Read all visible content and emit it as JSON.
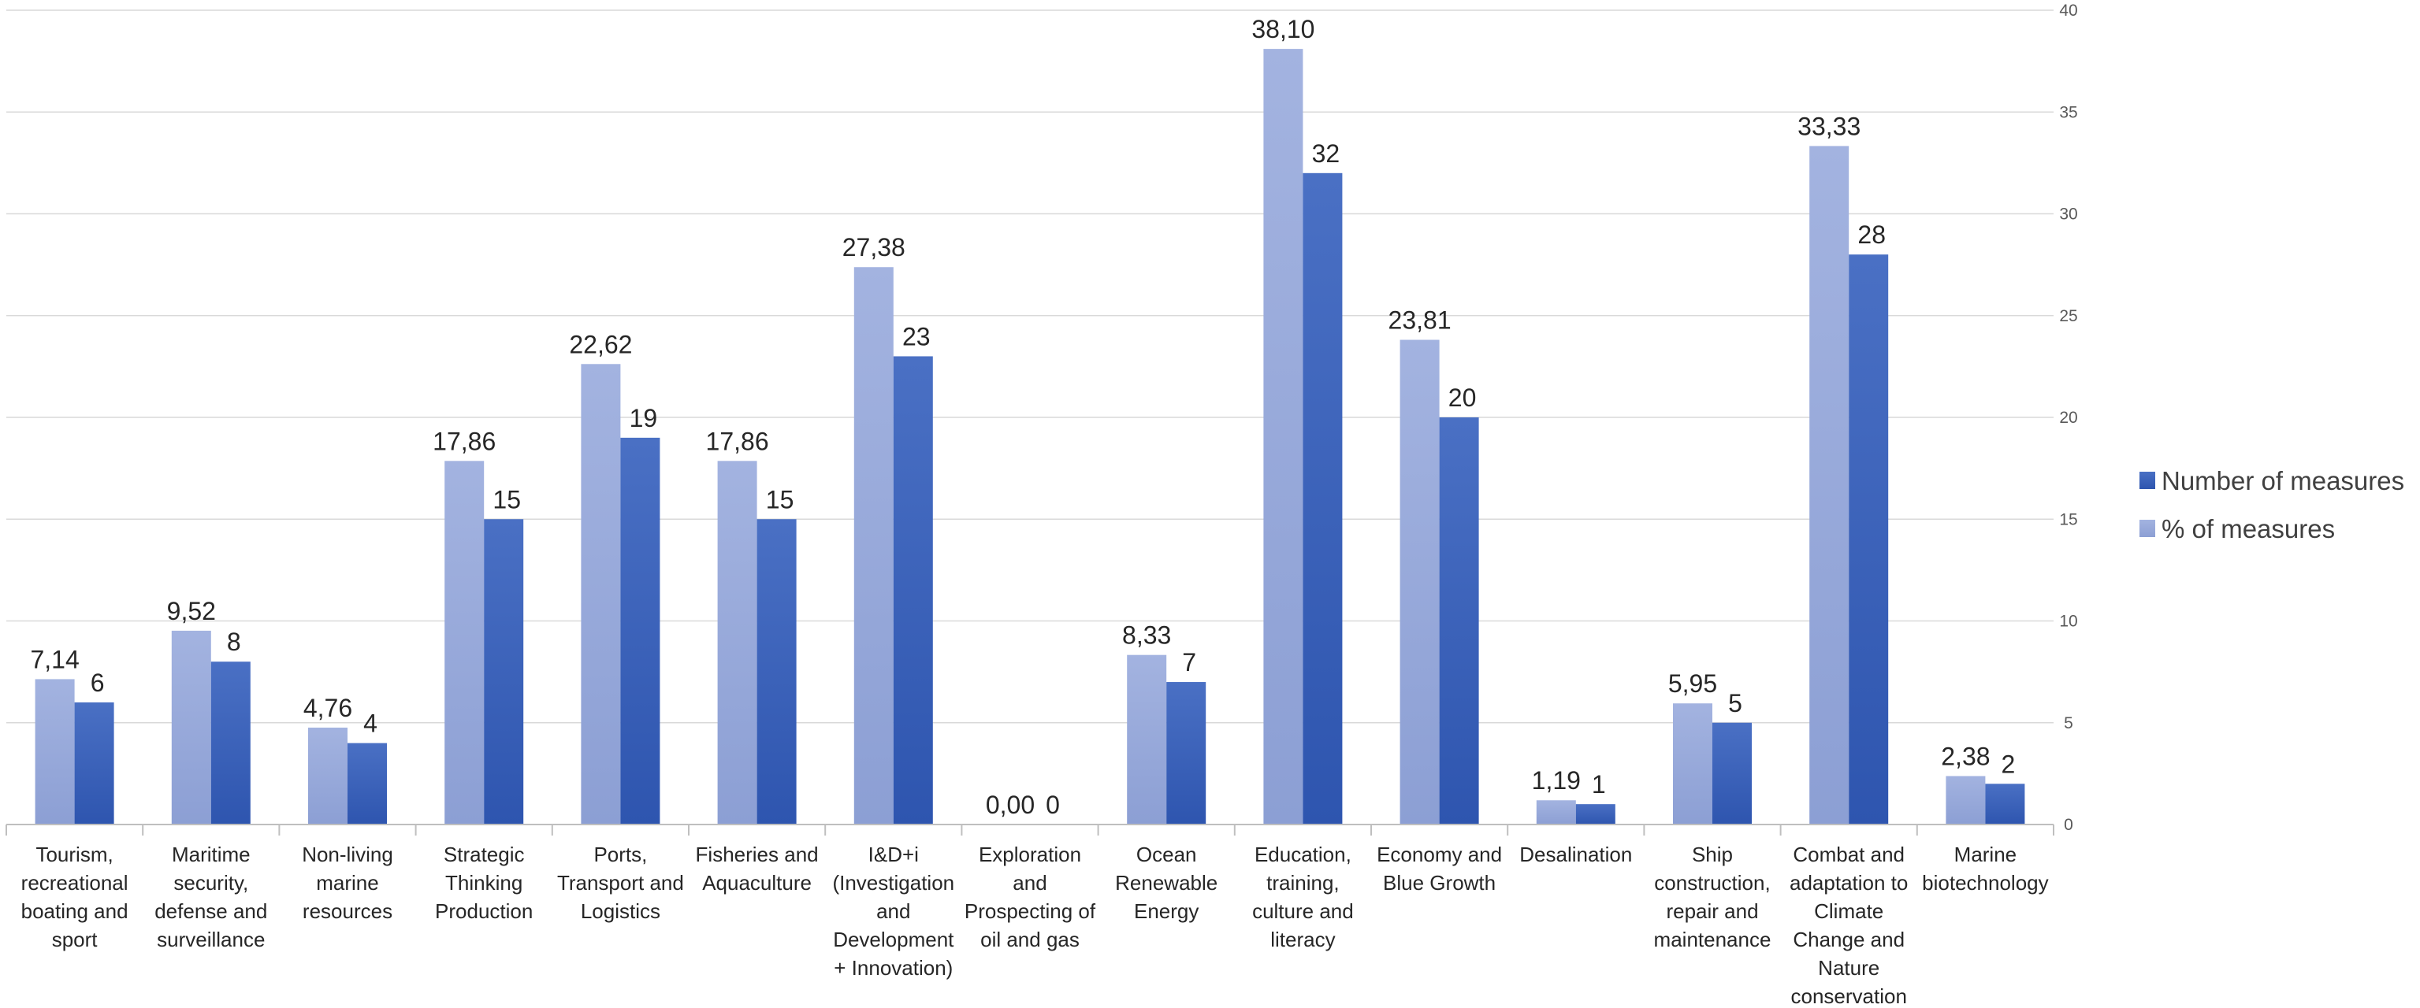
{
  "chart_data": {
    "type": "bar",
    "title": "",
    "xlabel": "",
    "ylabel": "",
    "ylim": [
      0,
      40
    ],
    "yticks": [
      0,
      5,
      10,
      15,
      20,
      25,
      30,
      35,
      40
    ],
    "grid": true,
    "legend_position": "right",
    "categories": [
      [
        "Tourism,",
        "recreational",
        "boating and",
        "sport"
      ],
      [
        "Maritime",
        "security,",
        "defense and",
        "surveillance"
      ],
      [
        "Non-living",
        "marine",
        "resources"
      ],
      [
        "Strategic",
        "Thinking",
        "Production"
      ],
      [
        "Ports,",
        "Transport and",
        "Logistics"
      ],
      [
        "Fisheries and",
        "Aquaculture"
      ],
      [
        "I&D+i",
        "(Investigation",
        "and",
        "Development",
        "+ Innovation)"
      ],
      [
        "Exploration",
        "and",
        "Prospecting of",
        "oil and gas"
      ],
      [
        "Ocean",
        "Renewable",
        "Energy"
      ],
      [
        "Education,",
        "training,",
        "culture and",
        "literacy"
      ],
      [
        "Economy and",
        "Blue Growth"
      ],
      [
        "Desalination"
      ],
      [
        "Ship",
        "construction,",
        "repair and",
        "maintenance"
      ],
      [
        "Combat and",
        "adaptation to",
        "Climate",
        "Change and",
        "Nature",
        "conservation"
      ],
      [
        "Marine",
        "biotechnology"
      ]
    ],
    "series": [
      {
        "name": "% of measures",
        "color": "#9DAEDC",
        "values": [
          7.14,
          9.52,
          4.76,
          17.86,
          22.62,
          17.86,
          27.38,
          0.0,
          8.33,
          38.1,
          23.81,
          1.19,
          5.95,
          33.33,
          2.38
        ],
        "labels": [
          "7,14",
          "9,52",
          "4,76",
          "17,86",
          "22,62",
          "17,86",
          "27,38",
          "0,00",
          "8,33",
          "38,10",
          "23,81",
          "1,19",
          "5,95",
          "33,33",
          "2,38"
        ]
      },
      {
        "name": "Number of measures",
        "color": "#3D63BA",
        "values": [
          6,
          8,
          4,
          15,
          19,
          15,
          23,
          0,
          7,
          32,
          20,
          1,
          5,
          28,
          2
        ],
        "labels": [
          "6",
          "8",
          "4",
          "15",
          "19",
          "15",
          "23",
          "0",
          "7",
          "32",
          "20",
          "1",
          "5",
          "28",
          "2"
        ]
      }
    ],
    "legend": [
      "Number of measures",
      "% of measures"
    ]
  }
}
